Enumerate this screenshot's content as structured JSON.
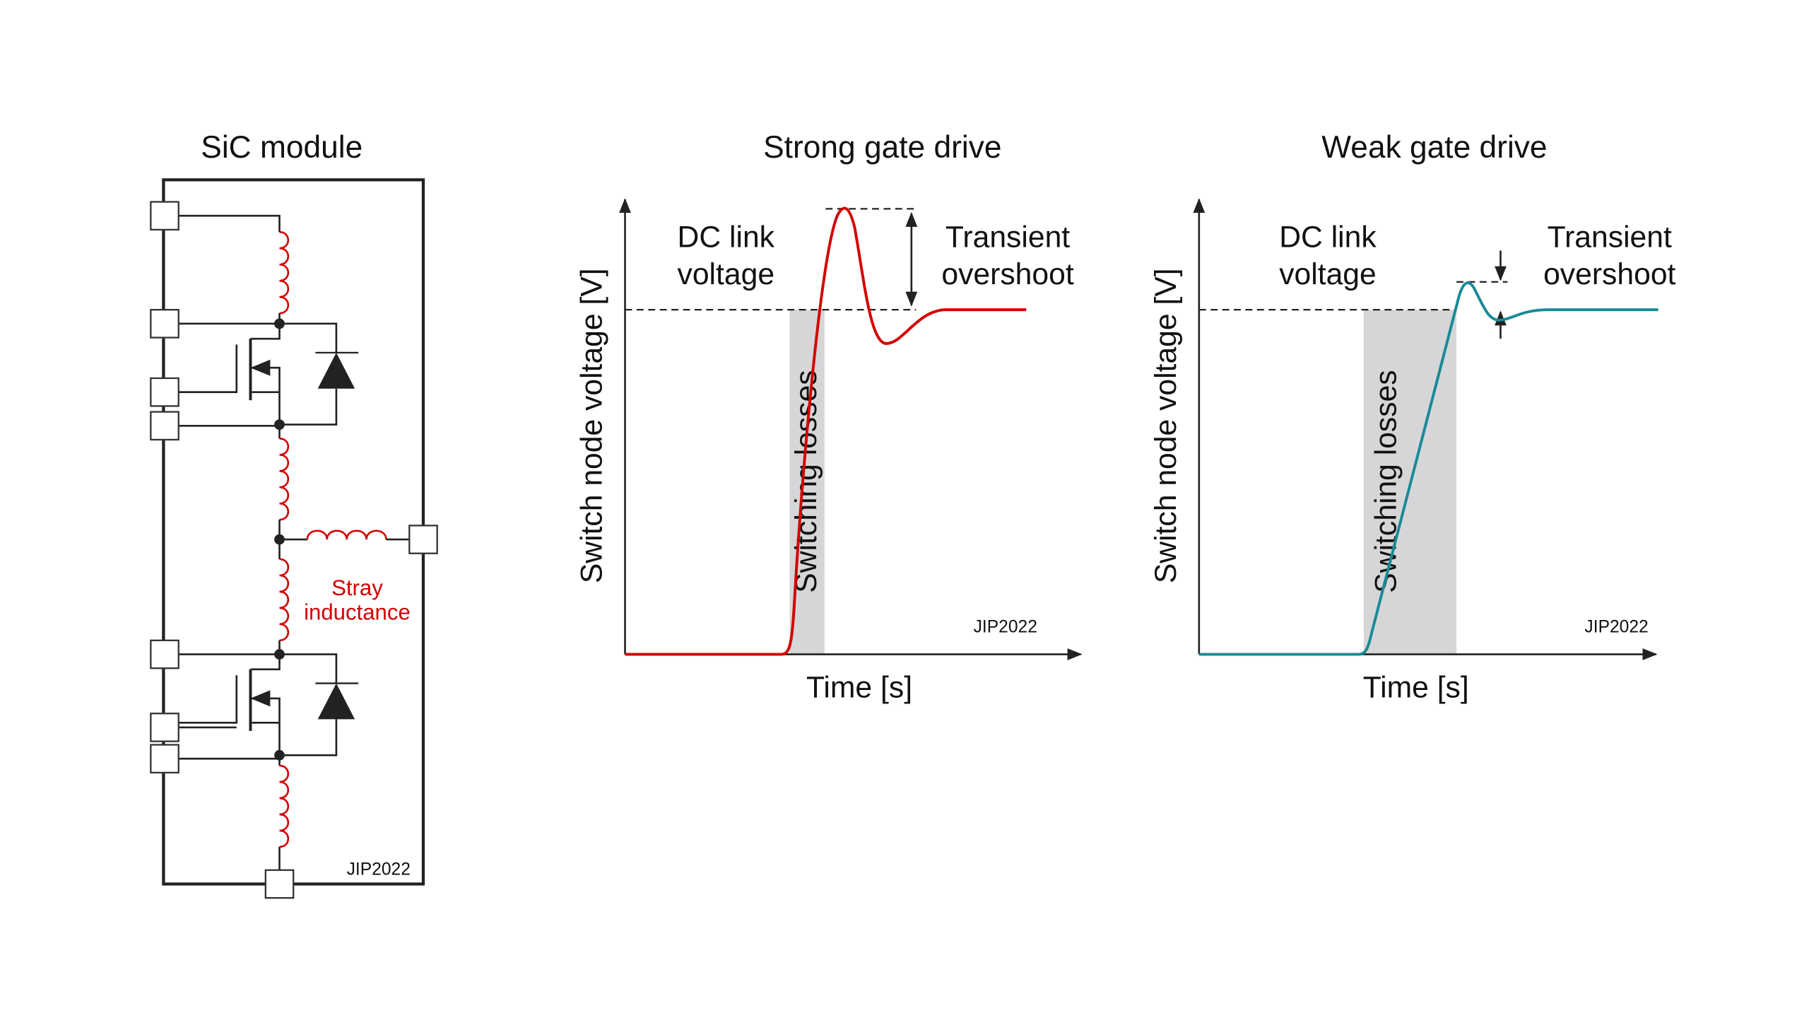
{
  "module": {
    "title": "SiC module",
    "stray_label_line1": "Stray",
    "stray_label_line2": "inductance",
    "watermark": "JIP2022"
  },
  "strong": {
    "title": "Strong gate drive",
    "ylabel": "Switch node voltage [V]",
    "xlabel": "Time [s]",
    "dc_line1": "DC link",
    "dc_line2": "voltage",
    "overshoot_line1": "Transient",
    "overshoot_line2": "overshoot",
    "losses": "Switching losses",
    "watermark": "JIP2022",
    "color": "#d40000"
  },
  "weak": {
    "title": "Weak gate drive",
    "ylabel": "Switch node voltage [V]",
    "xlabel": "Time [s]",
    "dc_line1": "DC link",
    "dc_line2": "voltage",
    "overshoot_line1": "Transient",
    "overshoot_line2": "overshoot",
    "losses": "Switching losses",
    "watermark": "JIP2022",
    "color": "#1a8a96"
  },
  "colors": {
    "stray": "#d40000",
    "shade": "#d6d6d8"
  }
}
